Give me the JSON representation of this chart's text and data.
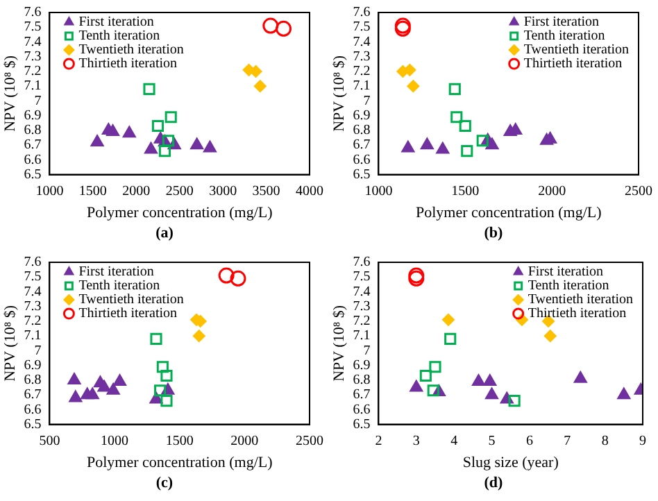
{
  "chart_data": [
    {
      "type": "scatter",
      "xlabel": "Polymer concentration (mg/L)",
      "ylabel": "NPV (10⁸ $)",
      "annotations": [
        "(a)"
      ],
      "xlim": [
        1000,
        4000
      ],
      "xticks": [
        1000,
        1500,
        2000,
        2500,
        3000,
        3500,
        4000
      ],
      "ylim": [
        6.5,
        7.6
      ],
      "yticks": [
        6.5,
        6.6,
        6.7,
        6.8,
        6.9,
        7,
        7.1,
        7.2,
        7.3,
        7.4,
        7.5,
        7.6
      ],
      "grid": false,
      "legend": "top left",
      "series": [
        {
          "name": "First iteration",
          "color": "#7030a0",
          "marker": "triangle",
          "x": [
            1550,
            1680,
            1730,
            1920,
            2170,
            2280,
            2330,
            2440,
            2700,
            2850
          ],
          "values": [
            6.72,
            6.8,
            6.79,
            6.78,
            6.67,
            6.74,
            6.72,
            6.7,
            6.7,
            6.68
          ]
        },
        {
          "name": "Tenth iteration",
          "color": "#00b050",
          "marker": "square",
          "x": [
            2150,
            2250,
            2400,
            2370,
            2330
          ],
          "values": [
            7.08,
            6.83,
            6.89,
            6.73,
            6.66
          ]
        },
        {
          "name": "Twentieth iteration",
          "color": "#ffc000",
          "marker": "diamond",
          "x": [
            3300,
            3380,
            3430
          ],
          "values": [
            7.21,
            7.2,
            7.1
          ]
        },
        {
          "name": "Thirtieth iteration",
          "color": "#ff0000",
          "marker": "circle",
          "x": [
            3550,
            3700
          ],
          "values": [
            7.51,
            7.49
          ]
        }
      ]
    },
    {
      "type": "scatter",
      "xlabel": "Polymer concentration (mg/L)",
      "ylabel": "NPV (10⁸ $)",
      "annotations": [
        "(b)"
      ],
      "xlim": [
        1000,
        2500
      ],
      "xticks": [
        1000,
        1500,
        2000,
        2500
      ],
      "ylim": [
        6.5,
        7.6
      ],
      "yticks": [
        6.5,
        6.6,
        6.7,
        6.8,
        6.9,
        7,
        7.1,
        7.2,
        7.3,
        7.4,
        7.5,
        7.6
      ],
      "grid": false,
      "legend": "top right",
      "series": [
        {
          "name": "First iteration",
          "color": "#7030a0",
          "marker": "triangle",
          "x": [
            1170,
            1280,
            1370,
            1630,
            1655,
            1760,
            1790,
            1970,
            1990
          ],
          "values": [
            6.68,
            6.7,
            6.67,
            6.73,
            6.7,
            6.79,
            6.8,
            6.73,
            6.74
          ]
        },
        {
          "name": "Tenth iteration",
          "color": "#00b050",
          "marker": "square",
          "x": [
            1440,
            1450,
            1500,
            1600,
            1510
          ],
          "values": [
            7.08,
            6.89,
            6.83,
            6.73,
            6.66
          ]
        },
        {
          "name": "Twentieth iteration",
          "color": "#ffc000",
          "marker": "diamond",
          "x": [
            1140,
            1180,
            1200
          ],
          "values": [
            7.2,
            7.21,
            7.1
          ]
        },
        {
          "name": "Thirtieth iteration",
          "color": "#ff0000",
          "marker": "circle",
          "x": [
            1140,
            1140
          ],
          "values": [
            7.51,
            7.49
          ]
        }
      ]
    },
    {
      "type": "scatter",
      "xlabel": "Polymer concentration (mg/L)",
      "ylabel": "NPV (10⁸ $)",
      "annotations": [
        "(c)"
      ],
      "xlim": [
        500,
        2500
      ],
      "xticks": [
        500,
        1000,
        1500,
        2000,
        2500
      ],
      "ylim": [
        6.5,
        7.6
      ],
      "yticks": [
        6.5,
        6.6,
        6.7,
        6.8,
        6.9,
        7,
        7.1,
        7.2,
        7.3,
        7.4,
        7.5,
        7.6
      ],
      "grid": false,
      "legend": "top left",
      "series": [
        {
          "name": "First iteration",
          "color": "#7030a0",
          "marker": "triangle",
          "x": [
            690,
            700,
            790,
            830,
            890,
            920,
            990,
            1040,
            1320,
            1410
          ],
          "values": [
            6.8,
            6.68,
            6.7,
            6.7,
            6.78,
            6.75,
            6.73,
            6.79,
            6.67,
            6.73
          ]
        },
        {
          "name": "Tenth iteration",
          "color": "#00b050",
          "marker": "square",
          "x": [
            1320,
            1370,
            1400,
            1350,
            1400
          ],
          "values": [
            7.08,
            6.89,
            6.83,
            6.73,
            6.66
          ]
        },
        {
          "name": "Twentieth iteration",
          "color": "#ffc000",
          "marker": "diamond",
          "x": [
            1630,
            1660,
            1650
          ],
          "values": [
            7.21,
            7.2,
            7.1
          ]
        },
        {
          "name": "Thirtieth iteration",
          "color": "#ff0000",
          "marker": "circle",
          "x": [
            1860,
            1950
          ],
          "values": [
            7.51,
            7.49
          ]
        }
      ]
    },
    {
      "type": "scatter",
      "xlabel": "Slug size (year)",
      "ylabel": "NPV (10⁸ $)",
      "annotations": [
        "(d)"
      ],
      "xlim": [
        2,
        9
      ],
      "xticks": [
        2,
        3,
        4,
        5,
        6,
        7,
        8,
        9
      ],
      "ylim": [
        6.5,
        7.6
      ],
      "yticks": [
        6.5,
        6.6,
        6.7,
        6.8,
        6.9,
        7,
        7.1,
        7.2,
        7.3,
        7.4,
        7.5,
        7.6
      ],
      "grid": false,
      "legend": "top right",
      "series": [
        {
          "name": "First iteration",
          "color": "#7030a0",
          "marker": "triangle",
          "x": [
            3.0,
            3.6,
            4.65,
            4.95,
            5.0,
            5.4,
            7.35,
            8.5,
            8.95
          ],
          "values": [
            6.75,
            6.72,
            6.79,
            6.79,
            6.7,
            6.67,
            6.81,
            6.7,
            6.73
          ]
        },
        {
          "name": "Tenth iteration",
          "color": "#00b050",
          "marker": "square",
          "x": [
            3.25,
            3.5,
            3.9,
            3.45,
            5.6
          ],
          "values": [
            6.83,
            6.89,
            7.08,
            6.73,
            6.66
          ]
        },
        {
          "name": "Twentieth iteration",
          "color": "#ffc000",
          "marker": "diamond",
          "x": [
            3.85,
            5.8,
            6.5,
            6.55
          ],
          "values": [
            7.21,
            7.21,
            7.2,
            7.1
          ]
        },
        {
          "name": "Thirtieth iteration",
          "color": "#ff0000",
          "marker": "circle",
          "x": [
            3.0,
            3.0
          ],
          "values": [
            7.51,
            7.49
          ]
        }
      ]
    }
  ]
}
